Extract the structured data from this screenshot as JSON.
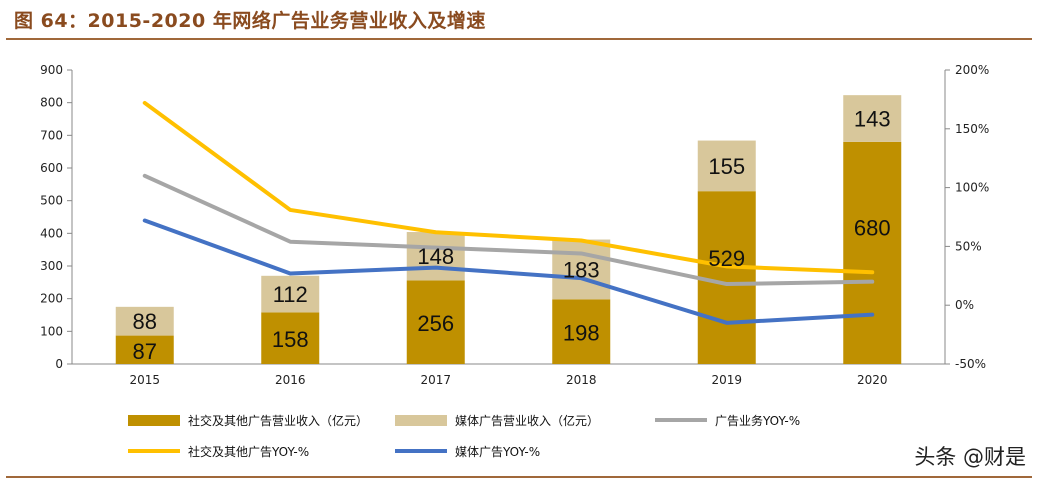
{
  "title": "图 64：2015-2020 年网络广告业务营业收入及增速",
  "watermark": "头条 @财是",
  "colors": {
    "social": "#bf9000",
    "media": "#d8c79b",
    "total_yoy": "#a6a6a6",
    "social_yoy": "#ffc000",
    "media_yoy": "#4472c4",
    "rule": "#a0683a"
  },
  "chart_data": {
    "type": "bar",
    "categories": [
      "2015",
      "2016",
      "2017",
      "2018",
      "2019",
      "2020"
    ],
    "stacked_bars": [
      {
        "name": "社交及其他广告营业收入（亿元）",
        "color": "#bf9000",
        "values": [
          87,
          158,
          256,
          198,
          529,
          680
        ]
      },
      {
        "name": "媒体广告营业收入（亿元）",
        "color": "#d8c79b",
        "values": [
          88,
          112,
          148,
          183,
          155,
          143
        ]
      }
    ],
    "lines": [
      {
        "name": "广告业务YOY-%",
        "color": "#a6a6a6",
        "values": [
          110,
          54,
          49,
          44,
          18,
          20
        ]
      },
      {
        "name": "社交及其他广告YOY-%",
        "color": "#ffc000",
        "values": [
          172,
          81,
          62,
          55,
          33,
          28
        ]
      },
      {
        "name": "媒体广告YOY-%",
        "color": "#4472c4",
        "values": [
          72,
          27,
          32,
          23,
          -15,
          -8
        ]
      }
    ],
    "y_left": {
      "min": 0,
      "max": 900,
      "ticks": [
        0,
        100,
        200,
        300,
        400,
        500,
        600,
        700,
        800,
        900
      ]
    },
    "y_right": {
      "min": -50,
      "max": 200,
      "ticks": [
        "-50%",
        "0%",
        "50%",
        "100%",
        "150%",
        "200%"
      ],
      "tick_values": [
        -50,
        0,
        50,
        100,
        150,
        200
      ]
    },
    "legend_position": "bottom"
  }
}
